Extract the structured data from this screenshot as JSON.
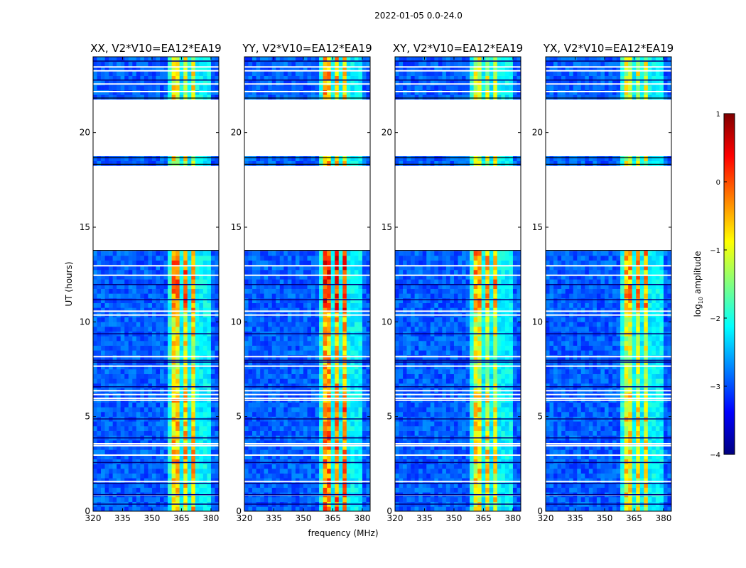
{
  "figure": {
    "suptitle": "2022-01-05 0.0-24.0",
    "ylabel": "UT (hours)",
    "xlabel": "frequency (MHz)",
    "colorbar_label": "log",
    "colorbar_label_sub": "10",
    "colorbar_label_rest": " amplitude"
  },
  "chart_data": {
    "type": "heatmap",
    "title": "2022-01-05 0.0-24.0",
    "xlabel": "frequency (MHz)",
    "ylabel": "UT (hours)",
    "xlim": [
      320,
      384
    ],
    "ylim": [
      0,
      24
    ],
    "xticks": [
      320,
      335,
      350,
      365,
      380
    ],
    "yticks": [
      0,
      5,
      10,
      15,
      20
    ],
    "colorbar": {
      "label": "log10 amplitude",
      "range": [
        -4,
        1
      ],
      "ticks": [
        1,
        0,
        -1,
        -2,
        -3,
        -4
      ],
      "colormap": [
        "#00007f",
        "#0000ff",
        "#0080ff",
        "#00ffff",
        "#80ff80",
        "#ffff00",
        "#ff8000",
        "#ff0000",
        "#7f0000"
      ]
    },
    "bright_band_mhz": [
      361,
      380
    ],
    "band_channel_gaps_mhz": [
      365,
      369.5,
      374,
      378
    ],
    "no_data_ut": [
      [
        13.8,
        18.3
      ],
      [
        18.7,
        21.8
      ]
    ],
    "panels": [
      {
        "title": "XX, V2*V10=EA12*EA19",
        "pol": "XX",
        "peak": 0.1
      },
      {
        "title": "YY, V2*V10=EA12*EA19",
        "pol": "YY",
        "peak": 0.5
      },
      {
        "title": "XY, V2*V10=EA12*EA19",
        "pol": "XY",
        "peak": -0.1
      },
      {
        "title": "YX, V2*V10=EA12*EA19",
        "pol": "YX",
        "peak": -0.1
      }
    ]
  }
}
